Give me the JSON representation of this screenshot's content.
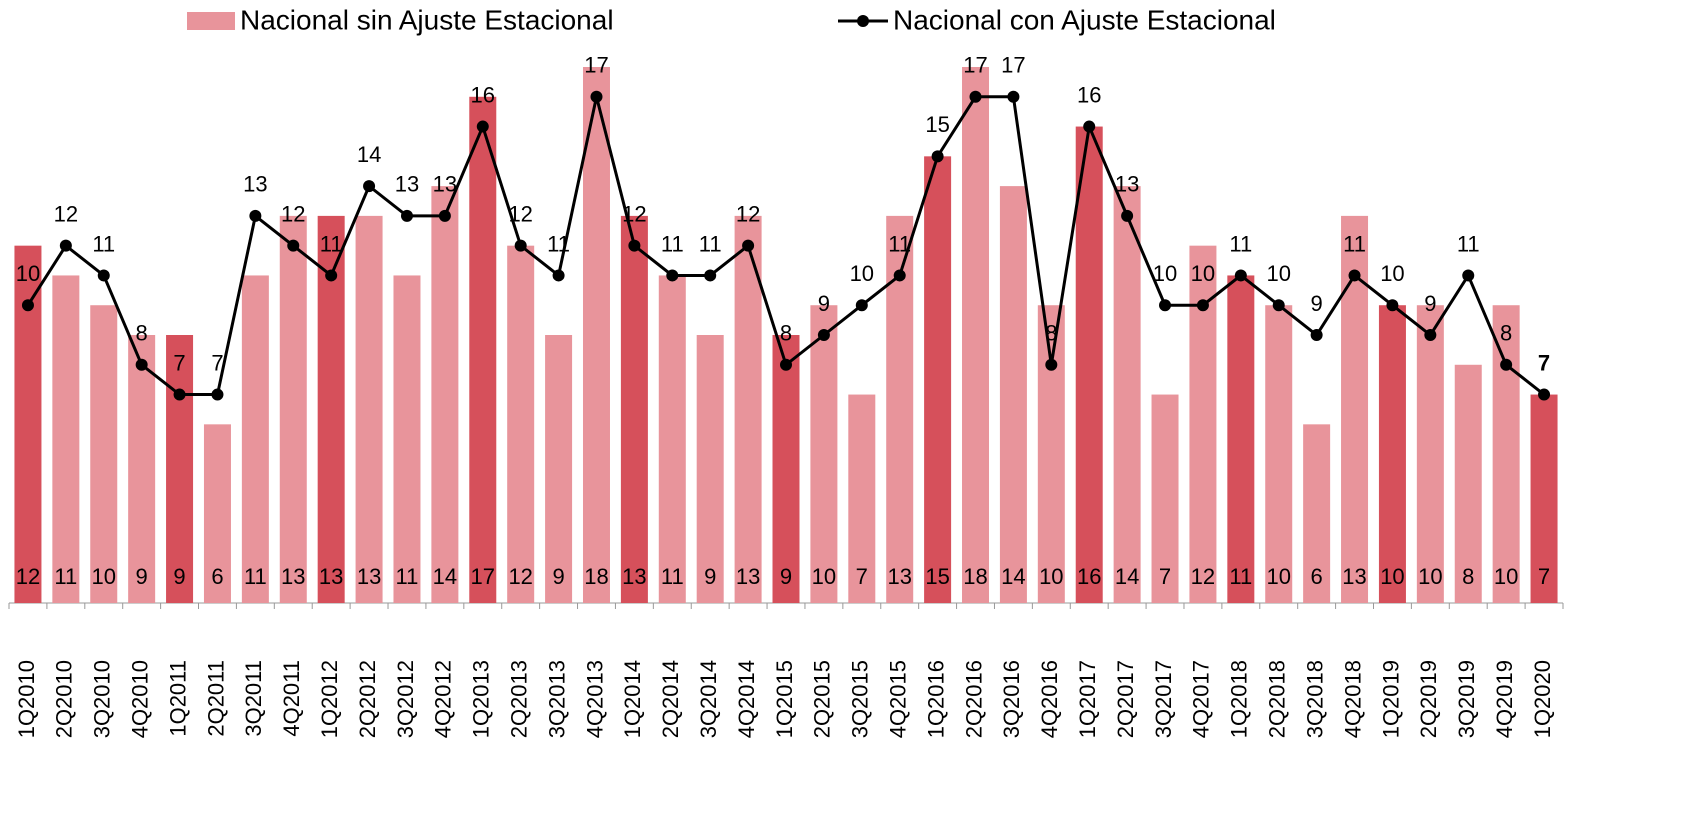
{
  "chart_data": {
    "type": "bar_line",
    "categories": [
      "1Q2010",
      "2Q2010",
      "3Q2010",
      "4Q2010",
      "1Q2011",
      "2Q2011",
      "3Q2011",
      "4Q2011",
      "1Q2012",
      "2Q2012",
      "3Q2012",
      "4Q2012",
      "1Q2013",
      "2Q2013",
      "3Q2013",
      "4Q2013",
      "1Q2014",
      "2Q2014",
      "3Q2014",
      "4Q2014",
      "1Q2015",
      "2Q2015",
      "3Q2015",
      "4Q2015",
      "1Q2016",
      "2Q2016",
      "3Q2016",
      "4Q2016",
      "1Q2017",
      "2Q2017",
      "3Q2017",
      "4Q2017",
      "1Q2018",
      "2Q2018",
      "3Q2018",
      "4Q2018",
      "1Q2019",
      "2Q2019",
      "3Q2019",
      "4Q2019",
      "1Q2020"
    ],
    "series": [
      {
        "name": "Nacional sin Ajuste Estacional",
        "type": "bar",
        "color": "#e8949b",
        "colors": [
          "#d6505b",
          "#e8949b",
          "#e8949b",
          "#e8949b",
          "#d6505b",
          "#e8949b",
          "#e8949b",
          "#e8949b",
          "#d6505b",
          "#e8949b",
          "#e8949b",
          "#e8949b",
          "#d6505b",
          "#e8949b",
          "#e8949b",
          "#e8949b",
          "#d6505b",
          "#e8949b",
          "#e8949b",
          "#e8949b",
          "#d6505b",
          "#e8949b",
          "#e8949b",
          "#e8949b",
          "#d6505b",
          "#e8949b",
          "#e8949b",
          "#e8949b",
          "#d6505b",
          "#e8949b",
          "#e8949b",
          "#e8949b",
          "#d6505b",
          "#e8949b",
          "#e8949b",
          "#e8949b",
          "#d6505b",
          "#e8949b",
          "#e8949b",
          "#e8949b",
          "#d6505b"
        ],
        "values": [
          12,
          11,
          10,
          9,
          9,
          6,
          11,
          13,
          13,
          13,
          11,
          14,
          17,
          12,
          9,
          18,
          13,
          11,
          9,
          13,
          9,
          10,
          7,
          13,
          15,
          18,
          14,
          10,
          16,
          14,
          7,
          12,
          11,
          10,
          6,
          13,
          10,
          10,
          8,
          10,
          7
        ]
      },
      {
        "name": "Nacional con Ajuste Estacional",
        "type": "line",
        "color": "#000000",
        "values": [
          10,
          12,
          11,
          8,
          7,
          7,
          13,
          12,
          11,
          14,
          13,
          13,
          16,
          12,
          11,
          17,
          12,
          11,
          11,
          12,
          8,
          9,
          10,
          11,
          15,
          17,
          17,
          8,
          16,
          13,
          10,
          10,
          11,
          10,
          9,
          11,
          10,
          9,
          11,
          8,
          7
        ]
      }
    ],
    "ylim": [
      0,
      18
    ]
  }
}
